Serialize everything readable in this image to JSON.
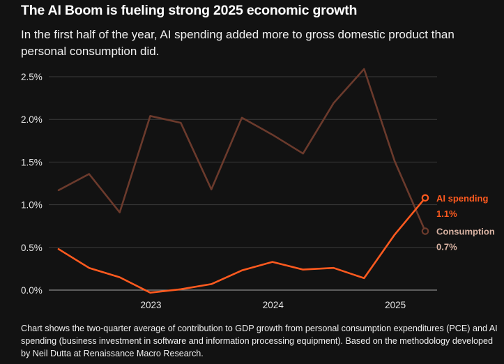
{
  "title": "The AI Boom is fueling strong 2025 economic growth",
  "subtitle": "In the first half of the year, AI spending added more to gross domestic product than personal consumption did.",
  "footnote": "Chart shows the two-quarter average of contribution to GDP growth from personal consumption expenditures (PCE) and AI spending (business investment in software and information processing equipment). Based on the methodology developed by Neil Dutta at Renaissance Macro Research.",
  "colors": {
    "background": "#121212",
    "consumption": "#6b3a2c",
    "consumption_label": "#d9b3a3",
    "ai_spending": "#ff5a1f",
    "gridline": "#3b3b3b"
  },
  "chart_data": {
    "type": "line",
    "x": [
      2022.25,
      2022.5,
      2022.75,
      2023.0,
      2023.25,
      2023.5,
      2023.75,
      2024.0,
      2024.25,
      2024.5,
      2024.75,
      2025.0,
      2025.25
    ],
    "x_ticks": [
      {
        "value": 2023,
        "label": "2023"
      },
      {
        "value": 2024,
        "label": "2024"
      },
      {
        "value": 2025,
        "label": "2025"
      }
    ],
    "y_ticks": [
      {
        "value": 0.0,
        "label": "0.0%"
      },
      {
        "value": 0.5,
        "label": "0.5%"
      },
      {
        "value": 1.0,
        "label": "1.0%"
      },
      {
        "value": 1.5,
        "label": "1.5%"
      },
      {
        "value": 2.0,
        "label": "2.0%"
      },
      {
        "value": 2.5,
        "label": "2.5%"
      }
    ],
    "ylim": [
      0,
      2.5
    ],
    "grid": true,
    "series": [
      {
        "name": "Consumption",
        "end_label": "0.7%",
        "color_key": "consumption",
        "values": [
          1.17,
          1.36,
          0.91,
          2.04,
          1.96,
          1.18,
          2.02,
          1.82,
          1.6,
          2.19,
          2.59,
          1.51,
          0.69
        ]
      },
      {
        "name": "AI spending",
        "end_label": "1.1%",
        "color_key": "ai_spending",
        "values": [
          0.48,
          0.26,
          0.15,
          -0.03,
          0.01,
          0.07,
          0.23,
          0.33,
          0.24,
          0.26,
          0.14,
          0.65,
          1.08
        ]
      }
    ]
  }
}
